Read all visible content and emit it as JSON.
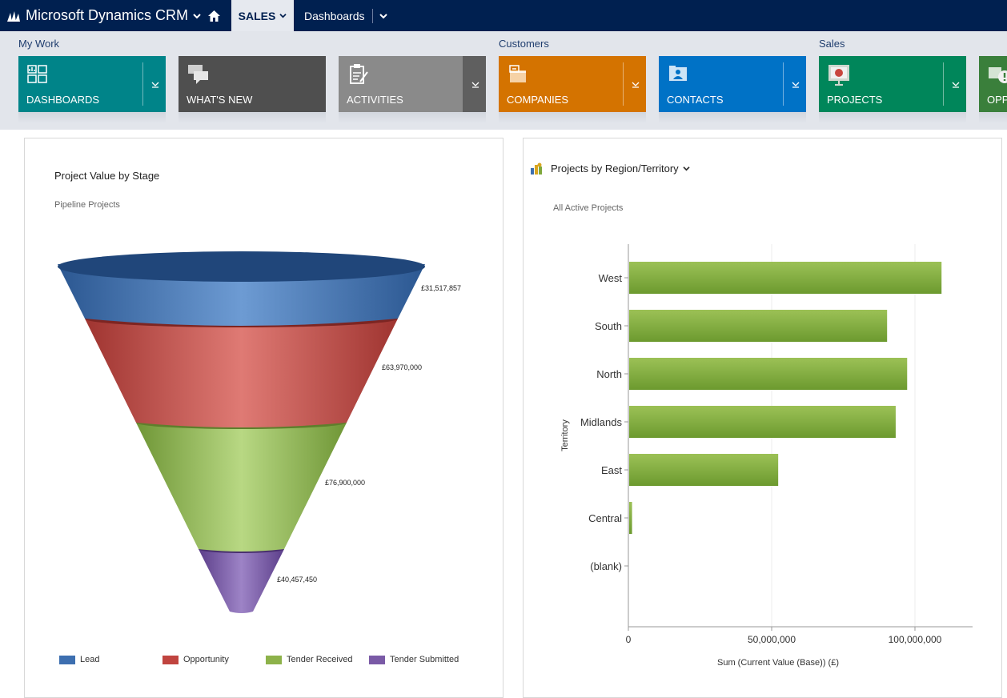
{
  "topnav": {
    "app_title": "Microsoft Dynamics CRM",
    "active_area": "SALES",
    "breadcrumb": "Dashboards"
  },
  "nav_groups": [
    {
      "label": "My Work"
    },
    {
      "label": "Customers"
    },
    {
      "label": "Sales"
    }
  ],
  "tiles": [
    {
      "label": "DASHBOARDS",
      "color": "#008489",
      "icon": "dashboards-icon"
    },
    {
      "label": "WHAT'S NEW",
      "color": "#4f4f4f",
      "icon": "whats-new-icon"
    },
    {
      "label": "ACTIVITIES",
      "color": "#8a8a8a",
      "icon": "activities-icon"
    },
    {
      "label": "COMPANIES",
      "color": "#d47300",
      "icon": "companies-icon"
    },
    {
      "label": "CONTACTS",
      "color": "#0072c6",
      "icon": "contacts-icon"
    },
    {
      "label": "PROJECTS",
      "color": "#00865a",
      "icon": "projects-icon"
    },
    {
      "label": "OPP",
      "color": "#3a7f3b",
      "icon": "opportunities-icon"
    }
  ],
  "funnel_chart": {
    "title": "Project Value by Stage",
    "view": "Pipeline Projects"
  },
  "bar_chart": {
    "title": "Projects by Region/Territory",
    "view": "All Active Projects"
  },
  "chart_data": [
    {
      "type": "funnel",
      "title": "Project Value by Stage",
      "subtitle": "Pipeline Projects",
      "categories": [
        "Lead",
        "Opportunity",
        "Tender Received",
        "Tender Submitted"
      ],
      "values": [
        31517857,
        63970000,
        76900000,
        40457450
      ],
      "value_labels": [
        "£31,517,857",
        "£63,970,000",
        "£76,900,000",
        "£40,457,450"
      ],
      "colors": [
        "#3d6fb0",
        "#c0443f",
        "#8db24a",
        "#7a5aa6"
      ],
      "legend": "bottom"
    },
    {
      "type": "bar",
      "orientation": "horizontal",
      "title": "Projects by Region/Territory",
      "subtitle": "All Active Projects",
      "categories": [
        "West",
        "South",
        "North",
        "Midlands",
        "East",
        "Central",
        "(blank)"
      ],
      "values": [
        109000000,
        90000000,
        97000000,
        93000000,
        52000000,
        1000000,
        0
      ],
      "xlabel": "Sum (Current Value (Base)) (£)",
      "ylabel": "Territory",
      "xlim": [
        0,
        120000000
      ],
      "xticks": [
        0,
        50000000,
        100000000
      ],
      "xtick_labels": [
        "0",
        "50,000,000",
        "100,000,000"
      ],
      "color": "#7fa83c",
      "grid": true
    }
  ]
}
